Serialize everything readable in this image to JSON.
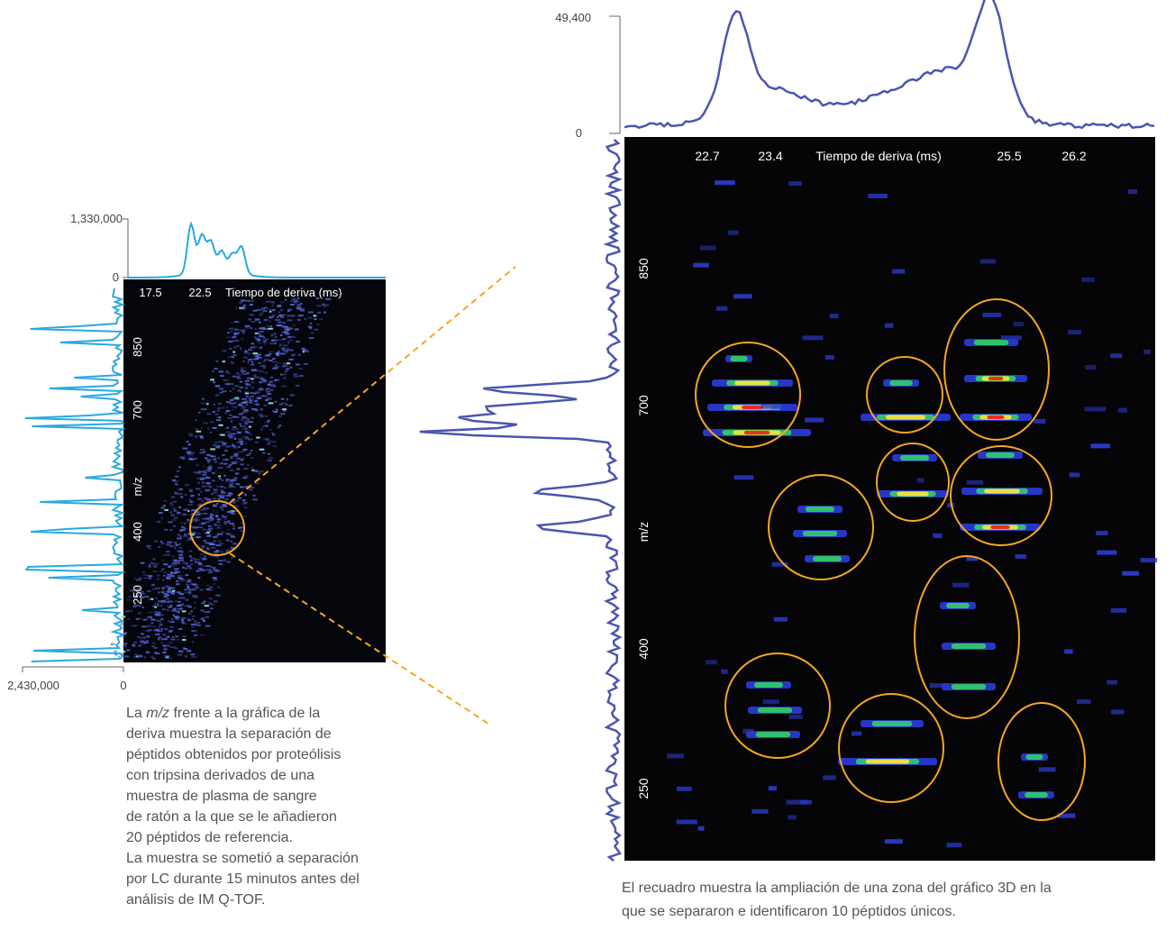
{
  "left_panel": {
    "top_axis": {
      "max": "1,330,000",
      "min": "0"
    },
    "drift_ticks": [
      "17.5",
      "22.5"
    ],
    "drift_label": "Tiempo de deriva (ms)",
    "mz_ticks": [
      "850",
      "700",
      "400",
      "250"
    ],
    "mz_label": "m/z",
    "side_axis": {
      "max": "2,430,000",
      "min": "0"
    }
  },
  "left_caption": {
    "intro": "La",
    "italic": "m/z",
    "lines": [
      "frente a la gráfica de la",
      "deriva muestra la separación de",
      "péptidos obtenidos por proteólisis",
      "con tripsina derivados de una",
      "muestra de plasma de sangre",
      "de ratón a la que se le añadieron",
      "20 péptidos de referencia.",
      "La muestra se sometió a separación",
      "por LC durante 15 minutos antes del",
      "análisis de IM Q-TOF."
    ]
  },
  "right_panel": {
    "top_axis": {
      "max": "49,400",
      "min": "0"
    },
    "drift_ticks": [
      "22.7",
      "23.4",
      "25.5",
      "26.2"
    ],
    "drift_label": "Tiempo de deriva (ms)",
    "mz_ticks": [
      "850",
      "700",
      "400",
      "250"
    ],
    "mz_label": "m/z"
  },
  "right_caption": {
    "lines": [
      "El recuadro muestra la ampliación de una zona del gráfico 3D en la",
      "que se separaron e identificaron 10 péptidos únicos."
    ]
  }
}
